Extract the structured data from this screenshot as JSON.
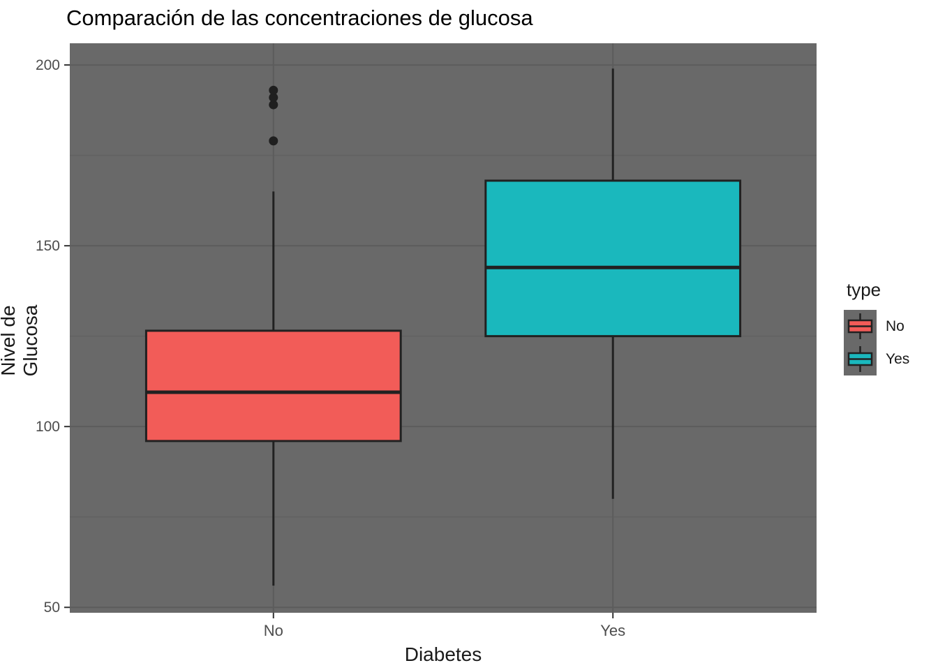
{
  "title": "Comparación de las concentraciones de glucosa",
  "chart_data": {
    "type": "boxplot",
    "title": "Comparación de las concentraciones de glucosa",
    "xlabel": "Diabetes",
    "ylabel": "Nivel de Glucosa",
    "categories": [
      "No",
      "Yes"
    ],
    "ylim": [
      48.5,
      206
    ],
    "yticks": [
      50,
      100,
      150,
      200
    ],
    "yminor": [
      75,
      125,
      175
    ],
    "grid": "on",
    "legend": {
      "title": "type",
      "position": "right",
      "entries": [
        {
          "label": "No",
          "color": "#F25C58"
        },
        {
          "label": "Yes",
          "color": "#1AB8BD"
        }
      ]
    },
    "series": [
      {
        "name": "No",
        "color": "#F25C58",
        "whisker_low": 56,
        "q1": 96,
        "median": 109.5,
        "q3": 126.5,
        "whisker_high": 165,
        "outliers": [
          179,
          189,
          191,
          193
        ]
      },
      {
        "name": "Yes",
        "color": "#1AB8BD",
        "whisker_low": 80,
        "q1": 125,
        "median": 144,
        "q3": 168,
        "whisker_high": 199,
        "outliers": []
      }
    ],
    "colors": {
      "panel_background": "#696969",
      "grid_major": "#5C5C5C",
      "grid_minor": "#616161",
      "box_border": "#212121",
      "outlier": "#1f1f1f",
      "tick_mark": "#333333",
      "tick_label": "#4D4D4D"
    }
  }
}
